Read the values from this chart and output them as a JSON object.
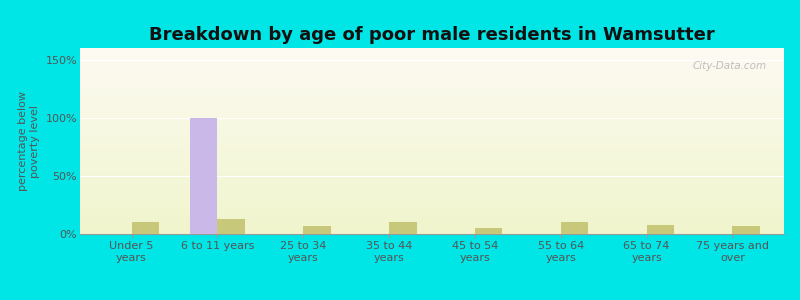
{
  "title": "Breakdown by age of poor male residents in Wamsutter",
  "ylabel": "percentage below\npoverty level",
  "categories": [
    "Under 5\nyears",
    "6 to 11 years",
    "25 to 34\nyears",
    "35 to 44\nyears",
    "45 to 54\nyears",
    "55 to 64\nyears",
    "65 to 74\nyears",
    "75 years and\nover"
  ],
  "wamsutter_values": [
    0,
    100,
    0,
    0,
    0,
    0,
    0,
    0
  ],
  "wyoming_values": [
    10,
    13,
    7,
    10,
    5,
    10,
    8,
    7
  ],
  "wamsutter_color": "#c9b8e8",
  "wyoming_color": "#c8c87a",
  "ylim": [
    0,
    160
  ],
  "yticks": [
    0,
    50,
    100,
    150
  ],
  "ytick_labels": [
    "0%",
    "50%",
    "100%",
    "150%"
  ],
  "outer_bg": "#00e5e5",
  "bar_width": 0.32,
  "title_fontsize": 13,
  "axis_fontsize": 8,
  "legend_fontsize": 10,
  "watermark": "City-Data.com"
}
